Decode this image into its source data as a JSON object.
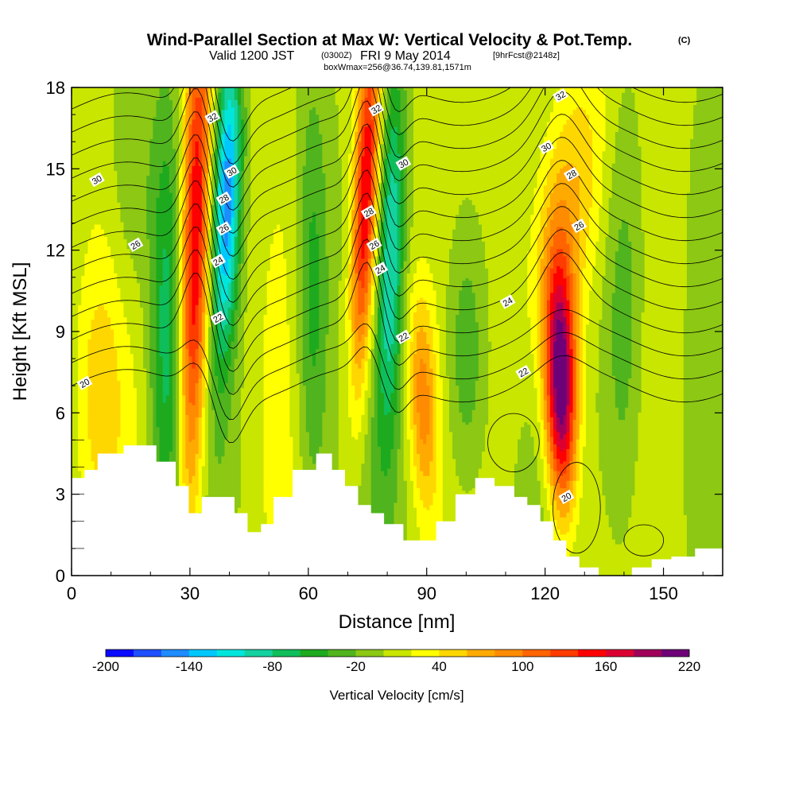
{
  "chart_data": {
    "type": "heatmap",
    "title": "Wind-Parallel Section at Max W: Vertical Velocity & Pot.Temp.",
    "title_mark": "(C)",
    "subtitle_parts": [
      "Valid 1200 JST",
      "(0300Z)",
      "FRI 9 May 2014",
      "[9hrFcst@2148z]"
    ],
    "subtitle2": "boxWmax=256@36.74,139.81,1571m",
    "xlabel": "Distance [nm]",
    "ylabel": "Height [Kft MSL]",
    "xlim": [
      0,
      165
    ],
    "ylim": [
      0,
      18
    ],
    "x_ticks": [
      "0",
      "30",
      "60",
      "90",
      "120",
      "150"
    ],
    "y_ticks": [
      "0",
      "3",
      "6",
      "9",
      "12",
      "15",
      "18"
    ],
    "colorbar": {
      "label": "Vertical Velocity [cm/s]",
      "tick_labels": [
        "-200",
        "-140",
        "-80",
        "-20",
        "40",
        "100",
        "160",
        "220"
      ],
      "levels": [
        -200,
        -180,
        -160,
        -140,
        -120,
        -100,
        -80,
        -60,
        -40,
        -20,
        0,
        20,
        40,
        60,
        80,
        100,
        120,
        140,
        160,
        180,
        200,
        220
      ],
      "colors": [
        "#0a0aff",
        "#1e50ff",
        "#1e8cff",
        "#00c8ff",
        "#00e6dc",
        "#14d2a0",
        "#0fbe5a",
        "#1eaa1e",
        "#50b41e",
        "#8cc814",
        "#c8e600",
        "#ffff00",
        "#ffd700",
        "#ffaa00",
        "#ff8c00",
        "#ff6400",
        "#ff3c00",
        "#ff0000",
        "#dc0032",
        "#a0005a",
        "#6e0078"
      ]
    },
    "updrafts": [
      {
        "x": 32,
        "w_max": 180
      },
      {
        "x": 75,
        "w_max": 170
      },
      {
        "x": 90,
        "w_max": 80
      },
      {
        "x": 124,
        "w_max": 220
      }
    ],
    "downdrafts": [
      {
        "x": 24,
        "w_min": -80
      },
      {
        "x": 40,
        "w_min": -150
      },
      {
        "x": 61,
        "w_min": -70
      },
      {
        "x": 81,
        "w_min": -90
      }
    ],
    "terrain": [
      [
        0,
        3.6
      ],
      [
        3.3,
        3.9
      ],
      [
        6.6,
        4.5
      ],
      [
        13.2,
        4.8
      ],
      [
        21.5,
        4.2
      ],
      [
        26.4,
        3.3
      ],
      [
        29.7,
        2.3
      ],
      [
        33,
        2.9
      ],
      [
        41.3,
        2.3
      ],
      [
        44.6,
        1.6
      ],
      [
        48,
        1.9
      ],
      [
        51.2,
        2.9
      ],
      [
        56,
        3.9
      ],
      [
        62,
        4.5
      ],
      [
        66,
        3.9
      ],
      [
        69.3,
        3.3
      ],
      [
        72.6,
        2.6
      ],
      [
        75.9,
        2.3
      ],
      [
        79.2,
        1.9
      ],
      [
        84.1,
        1.3
      ],
      [
        89.1,
        1.3
      ],
      [
        92.4,
        2
      ],
      [
        97.3,
        3
      ],
      [
        102.3,
        3.6
      ],
      [
        107.2,
        3.3
      ],
      [
        112.2,
        2.9
      ],
      [
        115.5,
        2.6
      ],
      [
        118.8,
        2
      ],
      [
        122.1,
        1.3
      ],
      [
        125.4,
        0.7
      ],
      [
        128.7,
        0.3
      ],
      [
        133.6,
        0
      ],
      [
        142,
        0.3
      ],
      [
        147,
        0.6
      ],
      [
        152,
        0.7
      ],
      [
        158,
        1
      ],
      [
        165,
        1
      ]
    ],
    "theta_contours": {
      "unit": "K",
      "levels": [
        20,
        21,
        22,
        23,
        24,
        25,
        26,
        27,
        28,
        29,
        30,
        31,
        32,
        33
      ],
      "labels": [
        {
          "text": "20",
          "x": 3.3,
          "y": 7.1
        },
        {
          "text": "20",
          "x": 125.4,
          "y": 2.9
        },
        {
          "text": "22",
          "x": 37.1,
          "y": 9.5
        },
        {
          "text": "22",
          "x": 84.1,
          "y": 8.8
        },
        {
          "text": "22",
          "x": 114.5,
          "y": 7.5
        },
        {
          "text": "24",
          "x": 37.1,
          "y": 11.6
        },
        {
          "text": "24",
          "x": 78.2,
          "y": 11.3
        },
        {
          "text": "24",
          "x": 110.5,
          "y": 10.1
        },
        {
          "text": "26",
          "x": 16.2,
          "y": 12.2
        },
        {
          "text": "26",
          "x": 38.6,
          "y": 12.8
        },
        {
          "text": "26",
          "x": 76.7,
          "y": 12.2
        },
        {
          "text": "26",
          "x": 128.6,
          "y": 12.9
        },
        {
          "text": "28",
          "x": 38.6,
          "y": 13.9
        },
        {
          "text": "28",
          "x": 75.3,
          "y": 13.4
        },
        {
          "text": "28",
          "x": 126.7,
          "y": 14.8
        },
        {
          "text": "30",
          "x": 6.4,
          "y": 14.6
        },
        {
          "text": "30",
          "x": 40.6,
          "y": 14.9
        },
        {
          "text": "30",
          "x": 84.1,
          "y": 15.2
        },
        {
          "text": "30",
          "x": 120.3,
          "y": 15.8
        },
        {
          "text": "32",
          "x": 35.7,
          "y": 16.9
        },
        {
          "text": "32",
          "x": 77.2,
          "y": 17.2
        },
        {
          "text": "32",
          "x": 123.9,
          "y": 17.7
        }
      ]
    }
  }
}
